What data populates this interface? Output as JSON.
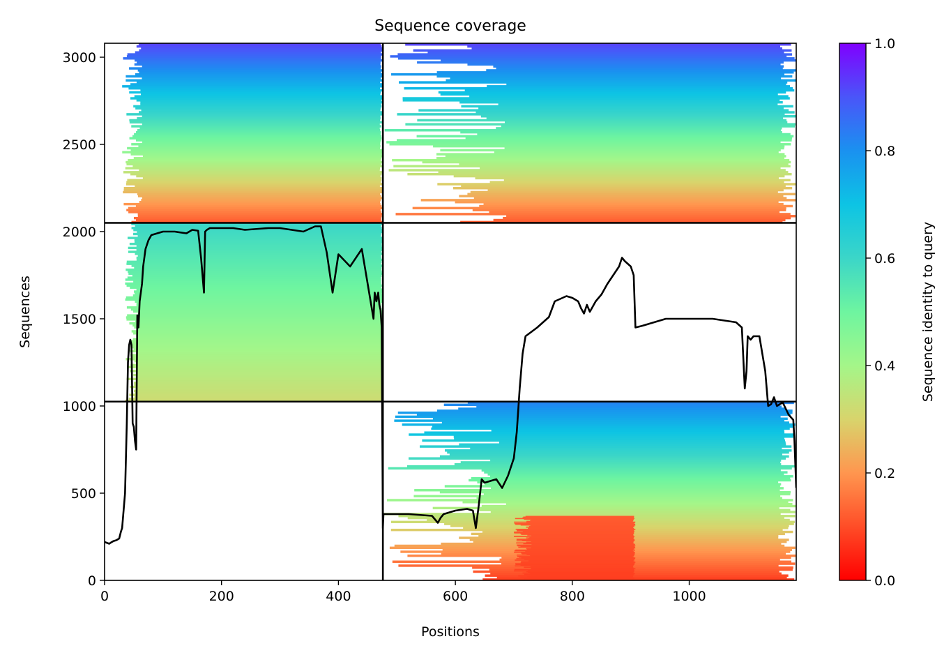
{
  "chart_data": {
    "type": "heatmap",
    "title": "Sequence coverage",
    "xlabel": "Positions",
    "ylabel": "Sequences",
    "xlim": [
      0,
      1183
    ],
    "ylim": [
      0,
      3080
    ],
    "xticks": [
      0,
      200,
      400,
      600,
      800,
      1000
    ],
    "yticks": [
      0,
      500,
      1000,
      1500,
      2000,
      2500,
      3000
    ],
    "grid": false,
    "colormap": "rainbow",
    "colorbar": {
      "label": "Sequence identity to query",
      "range": [
        0,
        1
      ],
      "ticks": [
        0.0,
        0.2,
        0.4,
        0.6,
        0.8,
        1.0
      ],
      "stops": [
        {
          "v": 0.0,
          "color": "#ff0000"
        },
        {
          "v": 0.1,
          "color": "#ff4d27"
        },
        {
          "v": 0.2,
          "color": "#ff964f"
        },
        {
          "v": 0.3,
          "color": "#d8d46c"
        },
        {
          "v": 0.4,
          "color": "#a4f689"
        },
        {
          "v": 0.5,
          "color": "#6ef5a0"
        },
        {
          "v": 0.6,
          "color": "#3bd6c8"
        },
        {
          "v": 0.7,
          "color": "#0dc4e4"
        },
        {
          "v": 0.8,
          "color": "#1a91f0"
        },
        {
          "v": 0.9,
          "color": "#4a55f9"
        },
        {
          "v": 1.0,
          "color": "#8000ff"
        }
      ]
    },
    "chain_boundaries": {
      "x": [
        476
      ],
      "y": [
        1025,
        2050
      ]
    },
    "blocks": [
      {
        "x0": 35,
        "x1": 476,
        "y0": 1025,
        "y1": 2050,
        "id_low": 0.32,
        "id_high": 0.6,
        "ragged": 0.05
      },
      {
        "x0": 30,
        "x1": 476,
        "y0": 2050,
        "y1": 3080,
        "id_low": 0.12,
        "id_high": 0.92,
        "ragged": 0.08
      },
      {
        "x0": 476,
        "x1": 1183,
        "y0": 1025,
        "y1": 3080,
        "id_low": 0.0,
        "id_high": 0.0,
        "ragged": 0.0
      },
      {
        "x0": 476,
        "x1": 1183,
        "y0": 0,
        "y1": 1025,
        "id_low": 0.08,
        "id_high": 0.82,
        "ragged": 0.3
      },
      {
        "x0": 476,
        "x1": 1183,
        "y0": 2050,
        "y1": 3080,
        "id_low": 0.12,
        "id_high": 0.92,
        "ragged": 0.3
      },
      {
        "x0": 700,
        "x1": 908,
        "y0": 0,
        "y1": 370,
        "id_low": 0.08,
        "id_high": 0.12,
        "ragged": 0.15
      }
    ],
    "series": [
      {
        "type": "line",
        "color": "#000000",
        "x": [
          0,
          8,
          10,
          15,
          20,
          25,
          28,
          30,
          32,
          35,
          38,
          40,
          42,
          44,
          46,
          48,
          50,
          52,
          54,
          56,
          58,
          60,
          62,
          64,
          66,
          70,
          75,
          80,
          90,
          100,
          120,
          140,
          150,
          160,
          165,
          170,
          172,
          175,
          180,
          200,
          220,
          240,
          260,
          280,
          300,
          320,
          340,
          360,
          370,
          380,
          390,
          400,
          420,
          440,
          450,
          460,
          462,
          465,
          468,
          470,
          472,
          474,
          476,
          477,
          490,
          520,
          560,
          570,
          575,
          580,
          600,
          620,
          630,
          635,
          640,
          645,
          650,
          670,
          680,
          690,
          700,
          705,
          710,
          715,
          720,
          740,
          750,
          760,
          770,
          790,
          800,
          810,
          815,
          820,
          825,
          830,
          840,
          850,
          860,
          870,
          880,
          885,
          890,
          900,
          905,
          908,
          920,
          960,
          1000,
          1040,
          1060,
          1080,
          1090,
          1095,
          1098,
          1100,
          1105,
          1110,
          1120,
          1130,
          1135,
          1140,
          1145,
          1150,
          1160,
          1170,
          1178,
          1180,
          1183
        ],
        "y": [
          220,
          210,
          215,
          225,
          230,
          240,
          280,
          300,
          380,
          500,
          900,
          1250,
          1350,
          1380,
          1350,
          900,
          880,
          800,
          750,
          1520,
          1450,
          1600,
          1650,
          1700,
          1800,
          1900,
          1950,
          1980,
          1990,
          2000,
          2000,
          1990,
          2010,
          2005,
          1850,
          1650,
          2000,
          2010,
          2020,
          2020,
          2020,
          2010,
          2015,
          2020,
          2020,
          2010,
          2000,
          2030,
          2030,
          1880,
          1650,
          1870,
          1800,
          1900,
          1700,
          1500,
          1650,
          1600,
          1650,
          1580,
          1550,
          1450,
          300,
          380,
          380,
          380,
          370,
          330,
          360,
          380,
          400,
          410,
          400,
          300,
          430,
          580,
          560,
          580,
          530,
          600,
          700,
          850,
          1100,
          1300,
          1400,
          1450,
          1480,
          1510,
          1600,
          1630,
          1620,
          1600,
          1560,
          1530,
          1580,
          1540,
          1600,
          1640,
          1700,
          1750,
          1800,
          1850,
          1830,
          1800,
          1750,
          1450,
          1460,
          1500,
          1500,
          1500,
          1490,
          1480,
          1450,
          1100,
          1200,
          1400,
          1380,
          1400,
          1400,
          1200,
          1000,
          1010,
          1050,
          1000,
          1020,
          950,
          920,
          800,
          530
        ]
      }
    ]
  }
}
